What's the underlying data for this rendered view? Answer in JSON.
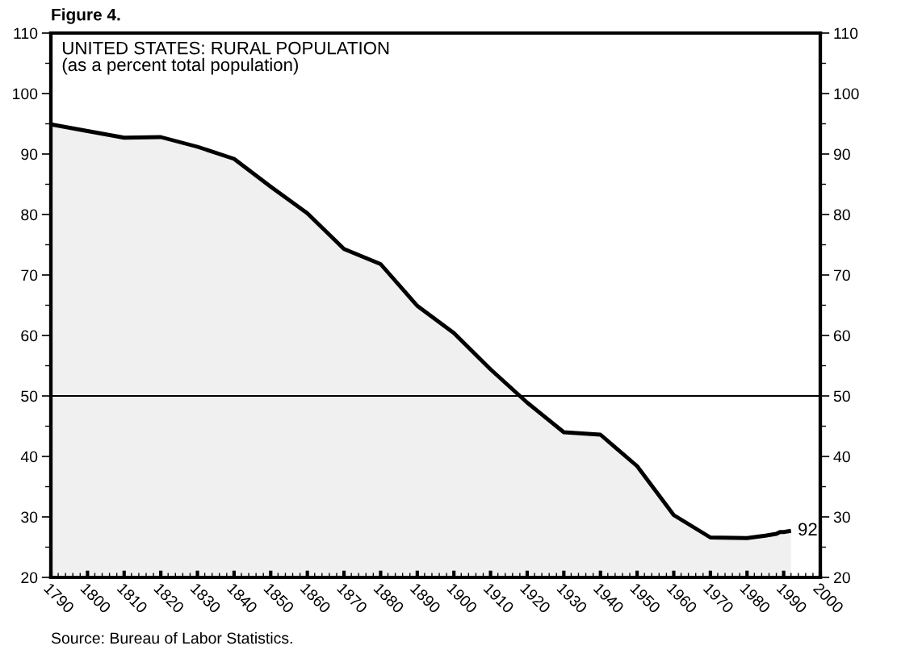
{
  "chart_data": {
    "type": "area",
    "title": "Figure 4.",
    "subtitle": "UNITED STATES: RURAL POPULATION\n(as a percent total population)",
    "x": [
      1790,
      1800,
      1810,
      1820,
      1830,
      1840,
      1850,
      1860,
      1870,
      1880,
      1890,
      1900,
      1910,
      1920,
      1930,
      1940,
      1950,
      1960,
      1970,
      1980,
      1985,
      1988,
      1989,
      1990,
      1992
    ],
    "series": [
      {
        "color": "#000000",
        "values": [
          94.9,
          93.8,
          92.7,
          92.8,
          91.2,
          89.2,
          84.6,
          80.2,
          74.3,
          71.8,
          64.9,
          60.4,
          54.4,
          48.9,
          44.0,
          43.6,
          38.4,
          30.3,
          26.6,
          26.5,
          26.9,
          27.2,
          27.5,
          27.5,
          27.7
        ]
      }
    ],
    "xlim": [
      1790,
      2000
    ],
    "xticks": [
      1790,
      1800,
      1810,
      1820,
      1830,
      1840,
      1850,
      1860,
      1870,
      1880,
      1890,
      1900,
      1910,
      1920,
      1930,
      1940,
      1950,
      1960,
      1970,
      1980,
      1990,
      2000
    ],
    "ylim": [
      20,
      110
    ],
    "yticks": [
      20,
      30,
      40,
      50,
      60,
      70,
      80,
      90,
      100,
      110
    ],
    "y2lim": [
      20,
      110
    ],
    "y2ticks": [
      20,
      30,
      40,
      50,
      60,
      70,
      80,
      90,
      100,
      110
    ],
    "ref_lines": [
      {
        "axis": "y",
        "value": 50,
        "color": "#000000"
      }
    ],
    "annotations": [
      {
        "text": "92",
        "x": 1992,
        "y": 27.7
      },
      "Source: Bureau of Labor Statistics."
    ],
    "grid": false,
    "marker": "none",
    "line_style": "solid"
  }
}
